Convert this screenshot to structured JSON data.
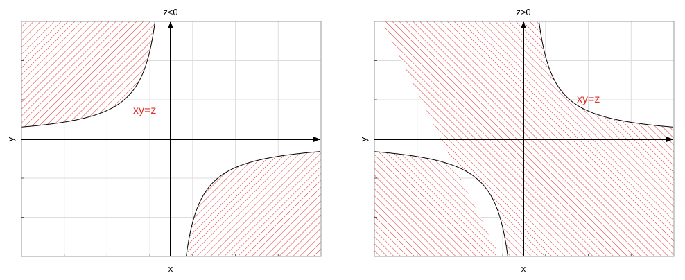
{
  "chart_data": [
    {
      "type": "area",
      "title": "z<0",
      "xlabel": "x",
      "ylabel": "y",
      "curve_label": "xy=z",
      "z": -1,
      "xlim": [
        -3.2,
        3.2
      ],
      "ylim": [
        -3,
        3
      ],
      "shaded_region": "xy<z",
      "grid": true,
      "curve_points": {
        "upper_left": [
          [
            -3.2,
            0.31
          ],
          [
            -2.5,
            0.4
          ],
          [
            -2,
            0.5
          ],
          [
            -1.5,
            0.67
          ],
          [
            -1,
            1
          ],
          [
            -0.7,
            1.43
          ],
          [
            -0.5,
            2
          ],
          [
            -0.4,
            2.5
          ],
          [
            -0.33,
            3
          ]
        ],
        "lower_right": [
          [
            0.33,
            -3
          ],
          [
            0.4,
            -2.5
          ],
          [
            0.5,
            -2
          ],
          [
            0.7,
            -1.43
          ],
          [
            1,
            -1
          ],
          [
            1.5,
            -0.67
          ],
          [
            2,
            -0.5
          ],
          [
            2.5,
            -0.4
          ],
          [
            3.2,
            -0.31
          ]
        ]
      }
    },
    {
      "type": "area",
      "title": "z>0",
      "xlabel": "x",
      "ylabel": "y",
      "curve_label": "xy=z",
      "z": 1,
      "xlim": [
        -3.2,
        3.2
      ],
      "ylim": [
        -3,
        3
      ],
      "shaded_region": "xy<z",
      "grid": true,
      "curve_points": {
        "upper_right": [
          [
            0.33,
            3
          ],
          [
            0.4,
            2.5
          ],
          [
            0.5,
            2
          ],
          [
            0.7,
            1.43
          ],
          [
            1,
            1
          ],
          [
            1.5,
            0.67
          ],
          [
            2,
            0.5
          ],
          [
            2.5,
            0.4
          ],
          [
            3.2,
            0.31
          ]
        ],
        "lower_left": [
          [
            -3.2,
            -0.31
          ],
          [
            -2.5,
            -0.4
          ],
          [
            -2,
            -0.5
          ],
          [
            -1.5,
            -0.67
          ],
          [
            -1,
            -1
          ],
          [
            -0.7,
            -1.43
          ],
          [
            -0.5,
            -2
          ],
          [
            -0.4,
            -2.5
          ],
          [
            -0.33,
            -3
          ]
        ]
      }
    }
  ],
  "colors": {
    "hatch": "#e0302a",
    "curve": "#000000",
    "axis": "#000000",
    "grid": "#dcdcdc",
    "label": "#e0302a"
  }
}
